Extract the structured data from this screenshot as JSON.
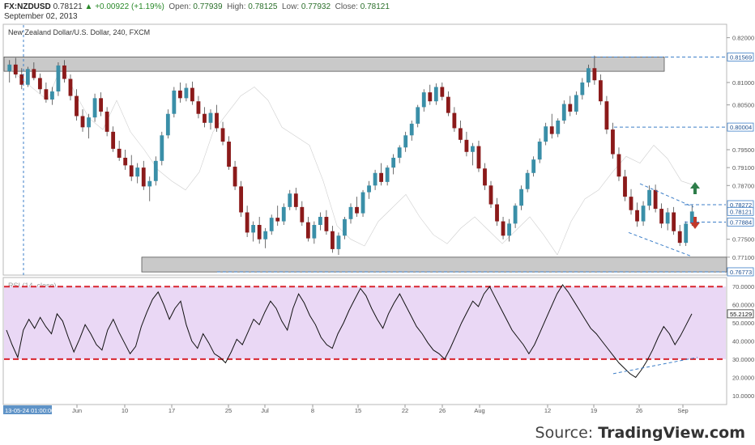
{
  "header": {
    "symbol": "FX:NZDUSD",
    "last": "0.78121",
    "change": "+0.00922 (+1.19%)",
    "open_label": "Open:",
    "open": "0.77939",
    "high_label": "High:",
    "high": "0.78125",
    "low_label": "Low:",
    "low": "0.77932",
    "close_label": "Close:",
    "close": "0.78121",
    "date": "September 02, 2013"
  },
  "chart_data": [
    {
      "type": "candlestick",
      "title": "New Zealand Dollar/U.S. Dollar, 240, FXCM",
      "ylim": [
        0.767,
        0.823
      ],
      "y_ticks": [
        "0.82000",
        "0.81000",
        "0.80500",
        "0.79500",
        "0.79100",
        "0.78700",
        "0.77500",
        "0.77100"
      ],
      "price_labels": [
        {
          "text": "0.81569",
          "value": 0.81569,
          "color": "#3d7fc8"
        },
        {
          "text": "0.80004",
          "value": 0.80004,
          "color": "#3d7fc8"
        },
        {
          "text": "0.78272",
          "value": 0.78272,
          "color": "#3d7fc8"
        },
        {
          "text": "0.78121",
          "value": 0.78121,
          "color": "#3d7fc8"
        },
        {
          "text": "0.77884",
          "value": 0.77884,
          "color": "#3d7fc8"
        },
        {
          "text": "0.76773",
          "value": 0.76773,
          "color": "#3d7fc8"
        }
      ],
      "close_path": [
        [
          0,
          0.8135
        ],
        [
          0.02,
          0.811
        ],
        [
          0.04,
          0.8085
        ],
        [
          0.06,
          0.806
        ],
        [
          0.08,
          0.814
        ],
        [
          0.1,
          0.8075
        ],
        [
          0.12,
          0.802
        ],
        [
          0.14,
          0.7995
        ],
        [
          0.16,
          0.806
        ],
        [
          0.18,
          0.799
        ],
        [
          0.2,
          0.795
        ],
        [
          0.22,
          0.7905
        ],
        [
          0.24,
          0.788
        ],
        [
          0.26,
          0.786
        ],
        [
          0.28,
          0.79
        ],
        [
          0.3,
          0.799
        ],
        [
          0.32,
          0.803
        ],
        [
          0.34,
          0.807
        ],
        [
          0.36,
          0.809
        ],
        [
          0.38,
          0.806
        ],
        [
          0.4,
          0.8
        ],
        [
          0.42,
          0.798
        ],
        [
          0.44,
          0.796
        ],
        [
          0.46,
          0.788
        ],
        [
          0.48,
          0.778
        ],
        [
          0.5,
          0.775
        ],
        [
          0.52,
          0.7735
        ],
        [
          0.54,
          0.779
        ],
        [
          0.56,
          0.782
        ],
        [
          0.58,
          0.785
        ],
        [
          0.6,
          0.78
        ],
        [
          0.62,
          0.776
        ],
        [
          0.64,
          0.774
        ],
        [
          0.66,
          0.7775
        ],
        [
          0.68,
          0.78
        ],
        [
          0.7,
          0.777
        ],
        [
          0.72,
          0.774
        ],
        [
          0.74,
          0.777
        ],
        [
          0.76,
          0.78
        ],
        [
          0.78,
          0.776
        ],
        [
          0.8,
          0.7715
        ],
        [
          0.82,
          0.779
        ],
        [
          0.84,
          0.784
        ],
        [
          0.86,
          0.786
        ],
        [
          0.88,
          0.79
        ],
        [
          0.9,
          0.7935
        ],
        [
          0.92,
          0.792
        ],
        [
          0.94,
          0.796
        ],
        [
          0.96,
          0.793
        ],
        [
          0.98,
          0.788
        ],
        [
          1.0,
          0.787
        ]
      ],
      "candles": [
        [
          1,
          0.8125,
          0.815,
          0.81,
          0.814
        ],
        [
          2,
          0.814,
          0.8155,
          0.811,
          0.8118
        ],
        [
          3,
          0.8118,
          0.8132,
          0.8085,
          0.8095
        ],
        [
          4,
          0.8095,
          0.8135,
          0.809,
          0.813
        ],
        [
          5,
          0.813,
          0.8145,
          0.8105,
          0.811
        ],
        [
          6,
          0.811,
          0.812,
          0.8075,
          0.8085
        ],
        [
          7,
          0.8085,
          0.81,
          0.8055,
          0.8062
        ],
        [
          8,
          0.8062,
          0.809,
          0.805,
          0.808
        ],
        [
          9,
          0.808,
          0.8145,
          0.807,
          0.8138
        ],
        [
          10,
          0.8138,
          0.815,
          0.81,
          0.8108
        ],
        [
          11,
          0.8108,
          0.8118,
          0.806,
          0.807
        ],
        [
          12,
          0.807,
          0.8085,
          0.8015,
          0.8025
        ],
        [
          13,
          0.8025,
          0.804,
          0.799,
          0.8
        ],
        [
          14,
          0.8,
          0.803,
          0.7975,
          0.8022
        ],
        [
          15,
          0.8022,
          0.8075,
          0.8012,
          0.8065
        ],
        [
          16,
          0.8065,
          0.8078,
          0.8025,
          0.8035
        ],
        [
          17,
          0.8035,
          0.8045,
          0.798,
          0.799
        ],
        [
          18,
          0.799,
          0.8002,
          0.7945,
          0.7952
        ],
        [
          19,
          0.7952,
          0.797,
          0.7925,
          0.7932
        ],
        [
          20,
          0.7932,
          0.795,
          0.7905,
          0.7915
        ],
        [
          21,
          0.7915,
          0.7938,
          0.788,
          0.789
        ],
        [
          22,
          0.789,
          0.792,
          0.7875,
          0.791
        ],
        [
          23,
          0.791,
          0.7925,
          0.786,
          0.7868
        ],
        [
          24,
          0.7868,
          0.789,
          0.7835,
          0.788
        ],
        [
          25,
          0.788,
          0.7935,
          0.787,
          0.7925
        ],
        [
          26,
          0.7925,
          0.799,
          0.7915,
          0.7982
        ],
        [
          27,
          0.7982,
          0.804,
          0.7975,
          0.803
        ],
        [
          28,
          0.803,
          0.809,
          0.8022,
          0.8082
        ],
        [
          29,
          0.8082,
          0.81,
          0.8055,
          0.8065
        ],
        [
          30,
          0.8065,
          0.8098,
          0.8058,
          0.8088
        ],
        [
          31,
          0.8088,
          0.8102,
          0.805,
          0.8058
        ],
        [
          32,
          0.8058,
          0.807,
          0.802,
          0.803
        ],
        [
          33,
          0.803,
          0.8045,
          0.8,
          0.801
        ],
        [
          34,
          0.801,
          0.804,
          0.7995,
          0.8032
        ],
        [
          35,
          0.8032,
          0.805,
          0.799,
          0.7998
        ],
        [
          36,
          0.7998,
          0.8012,
          0.796,
          0.7968
        ],
        [
          37,
          0.7968,
          0.798,
          0.7905,
          0.7912
        ],
        [
          38,
          0.7912,
          0.7925,
          0.786,
          0.7868
        ],
        [
          39,
          0.7868,
          0.788,
          0.78,
          0.781
        ],
        [
          40,
          0.781,
          0.7825,
          0.7755,
          0.7765
        ],
        [
          41,
          0.7765,
          0.779,
          0.7745,
          0.7782
        ],
        [
          42,
          0.7782,
          0.78,
          0.774,
          0.775
        ],
        [
          43,
          0.775,
          0.7775,
          0.773,
          0.7768
        ],
        [
          44,
          0.7768,
          0.7805,
          0.776,
          0.7798
        ],
        [
          45,
          0.7798,
          0.7825,
          0.778,
          0.779
        ],
        [
          46,
          0.779,
          0.783,
          0.7782,
          0.7822
        ],
        [
          47,
          0.7822,
          0.786,
          0.7815,
          0.7852
        ],
        [
          48,
          0.7852,
          0.7865,
          0.7815,
          0.7822
        ],
        [
          49,
          0.7822,
          0.7835,
          0.778,
          0.7788
        ],
        [
          50,
          0.7788,
          0.78,
          0.7745,
          0.7752
        ],
        [
          51,
          0.7752,
          0.779,
          0.774,
          0.7782
        ],
        [
          52,
          0.7782,
          0.781,
          0.777,
          0.78
        ],
        [
          53,
          0.78,
          0.7815,
          0.776,
          0.7768
        ],
        [
          54,
          0.7768,
          0.778,
          0.772,
          0.7728
        ],
        [
          55,
          0.7728,
          0.7765,
          0.7715,
          0.7758
        ],
        [
          56,
          0.7758,
          0.78,
          0.775,
          0.7795
        ],
        [
          57,
          0.7795,
          0.783,
          0.7785,
          0.7822
        ],
        [
          58,
          0.7822,
          0.7845,
          0.78,
          0.7808
        ],
        [
          59,
          0.7808,
          0.786,
          0.78,
          0.7855
        ],
        [
          60,
          0.7855,
          0.788,
          0.784,
          0.787
        ],
        [
          61,
          0.787,
          0.7905,
          0.786,
          0.7898
        ],
        [
          62,
          0.7898,
          0.792,
          0.787,
          0.7878
        ],
        [
          63,
          0.7878,
          0.7915,
          0.787,
          0.791
        ],
        [
          64,
          0.791,
          0.794,
          0.7895,
          0.7932
        ],
        [
          65,
          0.7932,
          0.796,
          0.792,
          0.7955
        ],
        [
          66,
          0.7955,
          0.799,
          0.7945,
          0.7982
        ],
        [
          67,
          0.7982,
          0.8015,
          0.797,
          0.8008
        ],
        [
          68,
          0.8008,
          0.805,
          0.8,
          0.8045
        ],
        [
          69,
          0.8045,
          0.8085,
          0.8035,
          0.8078
        ],
        [
          70,
          0.8078,
          0.8095,
          0.805,
          0.8058
        ],
        [
          71,
          0.8058,
          0.8098,
          0.805,
          0.809
        ],
        [
          72,
          0.809,
          0.81,
          0.806,
          0.8068
        ],
        [
          73,
          0.8068,
          0.808,
          0.8025,
          0.8032
        ],
        [
          74,
          0.8032,
          0.8045,
          0.799,
          0.7998
        ],
        [
          75,
          0.7998,
          0.8015,
          0.7965,
          0.7972
        ],
        [
          76,
          0.7972,
          0.799,
          0.7935,
          0.7945
        ],
        [
          77,
          0.7945,
          0.7965,
          0.7915,
          0.7958
        ],
        [
          78,
          0.7958,
          0.797,
          0.79,
          0.7908
        ],
        [
          79,
          0.7908,
          0.792,
          0.786,
          0.787
        ],
        [
          80,
          0.787,
          0.788,
          0.782,
          0.7828
        ],
        [
          81,
          0.7828,
          0.7842,
          0.778,
          0.779
        ],
        [
          82,
          0.779,
          0.78,
          0.775,
          0.7758
        ],
        [
          83,
          0.7758,
          0.7795,
          0.7745,
          0.7785
        ],
        [
          84,
          0.7785,
          0.783,
          0.7775,
          0.7825
        ],
        [
          85,
          0.7825,
          0.787,
          0.7815,
          0.7862
        ],
        [
          86,
          0.7862,
          0.7905,
          0.7855,
          0.7898
        ],
        [
          87,
          0.7898,
          0.7935,
          0.789,
          0.7928
        ],
        [
          88,
          0.7928,
          0.7975,
          0.792,
          0.7968
        ],
        [
          89,
          0.7968,
          0.801,
          0.796,
          0.8002
        ],
        [
          90,
          0.8002,
          0.803,
          0.7975,
          0.7985
        ],
        [
          91,
          0.7985,
          0.802,
          0.7978,
          0.8015
        ],
        [
          92,
          0.8015,
          0.806,
          0.8008,
          0.8052
        ],
        [
          93,
          0.8052,
          0.807,
          0.8025,
          0.8035
        ],
        [
          94,
          0.8035,
          0.808,
          0.8028,
          0.8072
        ],
        [
          95,
          0.8072,
          0.811,
          0.8062,
          0.81
        ],
        [
          96,
          0.81,
          0.814,
          0.809,
          0.8132
        ],
        [
          97,
          0.8132,
          0.816,
          0.8095,
          0.8105
        ],
        [
          98,
          0.8105,
          0.8118,
          0.805,
          0.8058
        ],
        [
          99,
          0.8058,
          0.807,
          0.7985,
          0.7995
        ],
        [
          100,
          0.7995,
          0.801,
          0.793,
          0.794
        ],
        [
          101,
          0.794,
          0.7955,
          0.788,
          0.789
        ],
        [
          102,
          0.789,
          0.7905,
          0.7835,
          0.7845
        ],
        [
          103,
          0.7845,
          0.7862,
          0.7805,
          0.7815
        ],
        [
          104,
          0.7815,
          0.7832,
          0.7778,
          0.779
        ],
        [
          105,
          0.779,
          0.7835,
          0.778,
          0.7825
        ],
        [
          106,
          0.7825,
          0.787,
          0.7815,
          0.786
        ],
        [
          107,
          0.786,
          0.7872,
          0.781,
          0.7818
        ],
        [
          108,
          0.7818,
          0.783,
          0.7775,
          0.7785
        ],
        [
          109,
          0.7785,
          0.782,
          0.777,
          0.781
        ],
        [
          110,
          0.781,
          0.7822,
          0.776,
          0.7768
        ],
        [
          111,
          0.7768,
          0.7782,
          0.7735,
          0.7742
        ],
        [
          112,
          0.7742,
          0.779,
          0.7735,
          0.7785
        ],
        [
          113,
          0.7785,
          0.7827,
          0.778,
          0.7812
        ]
      ]
    },
    {
      "type": "line",
      "title": "RSI (14, close)",
      "ylim": [
        5,
        75
      ],
      "y_ticks": [
        "70.0000",
        "60.0000",
        "50.0000",
        "40.0000",
        "30.0000",
        "20.0000",
        "10.0000"
      ],
      "overbought": 70,
      "oversold": 30,
      "last_label": "55.2129",
      "series": [
        {
          "values": [
            46,
            38,
            31,
            46,
            52,
            47,
            53,
            48,
            44,
            55,
            51,
            42,
            34,
            41,
            49,
            44,
            38,
            35,
            46,
            52,
            45,
            39,
            33,
            37,
            48,
            56,
            63,
            67,
            60,
            52,
            58,
            62,
            49,
            40,
            36,
            44,
            39,
            33,
            31,
            28,
            34,
            41,
            38,
            45,
            52,
            49,
            56,
            62,
            58,
            51,
            46,
            58,
            66,
            61,
            54,
            49,
            42,
            38,
            36,
            44,
            50,
            57,
            63,
            69,
            65,
            58,
            52,
            47,
            55,
            61,
            66,
            60,
            54,
            48,
            44,
            39,
            35,
            33,
            30,
            36,
            43,
            50,
            56,
            62,
            59,
            66,
            70,
            64,
            58,
            52,
            46,
            42,
            38,
            33,
            38,
            45,
            52,
            59,
            66,
            71,
            67,
            62,
            57,
            52,
            47,
            44,
            40,
            36,
            32,
            28,
            25,
            22,
            20,
            24,
            29,
            35,
            42,
            48,
            44,
            38,
            43,
            49,
            55
          ]
        }
      ],
      "trend_start": [
        108,
        22
      ],
      "trend_end": [
        123,
        31
      ]
    }
  ],
  "x_axis": {
    "first_label": "13-05-24 01:00:00",
    "ticks": [
      "Jun",
      "10",
      "17",
      "25",
      "Jul",
      "8",
      "15",
      "22",
      "26",
      "Aug",
      "12",
      "19",
      "26",
      "Sep"
    ]
  },
  "source": {
    "prefix": "Source: ",
    "brand": "TradingView.com"
  },
  "colors": {
    "up": "#3a8fa8",
    "down": "#8b1a1a",
    "rsi_fill": "#ead8f5",
    "level_line": "#d8242e",
    "guide": "#3d7fc8",
    "zone_fill": "#c9c9c9"
  }
}
